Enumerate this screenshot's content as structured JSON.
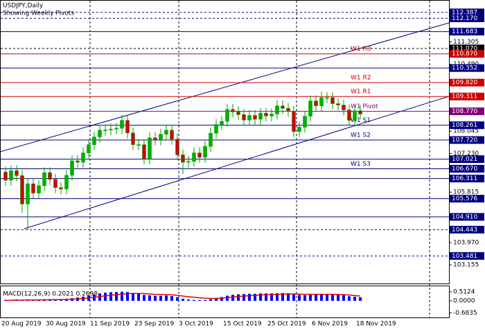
{
  "chart_data": [
    {
      "type": "candlestick",
      "title": "USDJPY,Daily",
      "subtitle": "Showing Weekly Pivots",
      "up_color": "#00b000",
      "down_color": "#d00000",
      "wick_color": "#00a000",
      "categories": [
        "20 Aug 2019",
        null,
        null,
        null,
        null,
        null,
        null,
        null,
        "30 Aug 2019",
        null,
        null,
        null,
        null,
        null,
        null,
        null,
        "11 Sep 2019",
        null,
        null,
        null,
        null,
        null,
        null,
        null,
        "23 Sep 2019",
        null,
        null,
        null,
        null,
        null,
        null,
        null,
        "3 Oct 2019",
        null,
        null,
        null,
        null,
        null,
        null,
        null,
        "15 Oct 2019",
        null,
        null,
        null,
        null,
        null,
        null,
        null,
        "25 Oct 2019",
        null,
        null,
        null,
        null,
        null,
        null,
        null,
        "6 Nov 2019",
        null,
        null,
        null,
        null,
        null,
        null,
        null,
        "18 Nov 2019"
      ],
      "open": [
        106.55,
        106.25,
        106.6,
        106.42,
        105.38,
        106.12,
        105.78,
        106.05,
        106.53,
        106.28,
        105.98,
        105.93,
        106.43,
        106.96,
        106.91,
        107.25,
        107.55,
        107.83,
        108.08,
        108.09,
        108.12,
        108.15,
        108.44,
        107.98,
        107.55,
        107.55,
        107.03,
        107.8,
        107.73,
        107.93,
        108.08,
        107.75,
        107.18,
        106.91,
        106.94,
        107.25,
        107.09,
        107.49,
        107.97,
        108.29,
        108.4,
        108.84,
        108.75,
        108.65,
        108.45,
        108.62,
        108.48,
        108.7,
        108.6,
        108.67,
        108.97,
        108.88,
        108.77,
        108.03,
        108.19,
        108.59,
        109.15,
        108.97,
        109.27,
        109.27,
        109.05,
        109.0,
        108.82,
        108.44,
        108.79
      ],
      "high": [
        106.75,
        106.8,
        106.8,
        106.62,
        106.3,
        106.32,
        106.25,
        106.73,
        106.73,
        106.48,
        106.18,
        106.63,
        107.16,
        107.16,
        107.45,
        107.75,
        108.03,
        108.28,
        108.29,
        108.32,
        108.35,
        108.64,
        108.64,
        108.18,
        107.75,
        107.75,
        108.0,
        108.0,
        108.13,
        108.28,
        108.28,
        107.95,
        107.38,
        107.14,
        107.45,
        107.45,
        107.69,
        108.17,
        108.49,
        108.6,
        109.04,
        109.04,
        108.95,
        108.85,
        108.82,
        108.82,
        108.9,
        108.9,
        108.87,
        109.17,
        109.17,
        109.08,
        108.97,
        108.39,
        108.79,
        109.35,
        109.35,
        109.49,
        109.47,
        109.47,
        109.25,
        109.2,
        109.02,
        108.99,
        108.99
      ],
      "low": [
        106.05,
        106.05,
        106.22,
        105.05,
        104.45,
        105.58,
        105.58,
        105.85,
        106.08,
        105.78,
        105.73,
        105.73,
        106.23,
        106.71,
        106.71,
        107.05,
        107.35,
        107.63,
        107.88,
        107.89,
        107.92,
        107.95,
        107.78,
        107.35,
        107.35,
        106.83,
        106.83,
        107.53,
        107.53,
        107.73,
        107.55,
        106.98,
        106.48,
        106.71,
        106.74,
        106.89,
        106.89,
        107.29,
        107.77,
        108.09,
        108.2,
        108.55,
        108.45,
        108.25,
        108.25,
        108.28,
        108.28,
        108.4,
        108.4,
        108.47,
        108.68,
        108.57,
        107.83,
        107.83,
        107.99,
        108.39,
        108.77,
        108.77,
        109.07,
        108.85,
        108.8,
        108.62,
        108.24,
        108.24,
        108.47
      ],
      "close": [
        106.25,
        106.6,
        106.42,
        105.38,
        106.12,
        105.78,
        106.05,
        106.53,
        106.28,
        105.98,
        105.93,
        106.43,
        106.96,
        106.91,
        107.25,
        107.55,
        107.83,
        108.08,
        108.09,
        108.12,
        108.15,
        108.44,
        107.98,
        107.55,
        107.55,
        107.03,
        107.8,
        107.73,
        107.93,
        108.08,
        107.75,
        107.18,
        106.91,
        106.94,
        107.25,
        107.09,
        107.49,
        107.97,
        108.29,
        108.4,
        108.84,
        108.75,
        108.65,
        108.45,
        108.62,
        108.48,
        108.7,
        108.6,
        108.67,
        108.97,
        108.88,
        108.77,
        108.03,
        108.19,
        108.59,
        109.15,
        108.97,
        109.27,
        109.27,
        109.05,
        109.0,
        108.82,
        108.44,
        108.79,
        108.67
      ],
      "ylim": [
        102.5,
        112.84
      ],
      "yticks": [
        {
          "value": 111.305,
          "label": "111.305"
        },
        {
          "value": 110.49,
          "label": "110.490"
        },
        {
          "value": 108.045,
          "label": "108.045"
        },
        {
          "value": 107.23,
          "label": "107.230"
        },
        {
          "value": 105.815,
          "label": "105.815"
        },
        {
          "value": 103.97,
          "label": "103.970"
        },
        {
          "value": 103.155,
          "label": "103.155"
        }
      ],
      "levels": [
        {
          "value": 112.387,
          "label": "112.387",
          "color": "#000080",
          "dashed": true
        },
        {
          "value": 112.17,
          "label": "112.170",
          "color": "#000080",
          "dashed": true
        },
        {
          "value": 111.683,
          "label": "111.683",
          "color": "#000080",
          "dashed": false
        },
        {
          "value": 111.07,
          "label": "111.070",
          "color": "#000000",
          "dashed": true
        },
        {
          "value": 110.87,
          "label": "110.870",
          "color": "#d00000",
          "dashed": false,
          "name": "W1 R3"
        },
        {
          "value": 110.352,
          "label": "110.352",
          "color": "#000080",
          "dashed": false
        },
        {
          "value": 109.82,
          "label": "109.820",
          "color": "#d00000",
          "dashed": false,
          "name": "W1 R2"
        },
        {
          "value": 109.311,
          "label": "109.311",
          "color": "#d00000",
          "dashed": false,
          "name": "W1 R1"
        },
        {
          "value": 108.77,
          "label": "108.770",
          "color": "#800080",
          "dashed": false,
          "name": "W1 Pivot"
        },
        {
          "value": 108.261,
          "label": "108.261",
          "color": "#000080",
          "dashed": false,
          "name": "W1 S1"
        },
        {
          "value": 107.72,
          "label": "107.720",
          "color": "#000080",
          "dashed": false,
          "name": "W1 S2"
        },
        {
          "value": 107.021,
          "label": "107.021",
          "color": "#000080",
          "dashed": false
        },
        {
          "value": 106.67,
          "label": "106.670",
          "color": "#000080",
          "dashed": false,
          "name": "W1 S3"
        },
        {
          "value": 106.311,
          "label": "106.311",
          "color": "#000080",
          "dashed": false
        },
        {
          "value": 105.576,
          "label": "105.576",
          "color": "#000080",
          "dashed": false
        },
        {
          "value": 104.91,
          "label": "104.910",
          "color": "#000080",
          "dashed": false
        },
        {
          "value": 104.443,
          "label": "104.443",
          "color": "#000080",
          "dashed": true
        },
        {
          "value": 103.481,
          "label": "103.481",
          "color": "#000080",
          "dashed": true
        }
      ]
    },
    {
      "type": "macd",
      "title": "MACD(12,26,9) 0.2021 0.2698",
      "color": "#0000ff",
      "signal_color": "#e00000",
      "values": [
        0.05,
        0.06,
        0.07,
        0.04,
        0.05,
        0.05,
        0.06,
        0.08,
        0.09,
        0.09,
        0.09,
        0.11,
        0.15,
        0.19,
        0.24,
        0.3,
        0.36,
        0.42,
        0.46,
        0.49,
        0.5,
        0.52,
        0.5,
        0.45,
        0.4,
        0.33,
        0.31,
        0.29,
        0.29,
        0.3,
        0.27,
        0.2,
        0.12,
        0.07,
        0.05,
        0.04,
        0.05,
        0.09,
        0.15,
        0.21,
        0.29,
        0.34,
        0.37,
        0.38,
        0.4,
        0.4,
        0.42,
        0.42,
        0.42,
        0.43,
        0.44,
        0.43,
        0.37,
        0.33,
        0.32,
        0.34,
        0.35,
        0.37,
        0.38,
        0.37,
        0.35,
        0.32,
        0.26,
        0.23,
        0.2
      ],
      "signal": [
        0.02,
        0.03,
        0.04,
        0.04,
        0.05,
        0.05,
        0.05,
        0.06,
        0.06,
        0.07,
        0.07,
        0.08,
        0.09,
        0.11,
        0.13,
        0.16,
        0.2,
        0.24,
        0.28,
        0.32,
        0.35,
        0.38,
        0.41,
        0.42,
        0.42,
        0.41,
        0.39,
        0.37,
        0.36,
        0.35,
        0.34,
        0.31,
        0.27,
        0.23,
        0.2,
        0.17,
        0.15,
        0.14,
        0.14,
        0.15,
        0.18,
        0.21,
        0.24,
        0.27,
        0.29,
        0.31,
        0.33,
        0.35,
        0.36,
        0.37,
        0.38,
        0.39,
        0.39,
        0.38,
        0.37,
        0.37,
        0.37,
        0.37,
        0.37,
        0.37,
        0.36,
        0.35,
        0.33,
        0.3,
        0.27
      ],
      "ylim": [
        -0.945,
        0.866
      ],
      "yticks": [
        {
          "value": 0.5124,
          "label": "0.5124"
        },
        {
          "value": 0,
          "label": "0.0000"
        },
        {
          "value": -0.6835,
          "label": "-0.6835"
        }
      ]
    }
  ]
}
